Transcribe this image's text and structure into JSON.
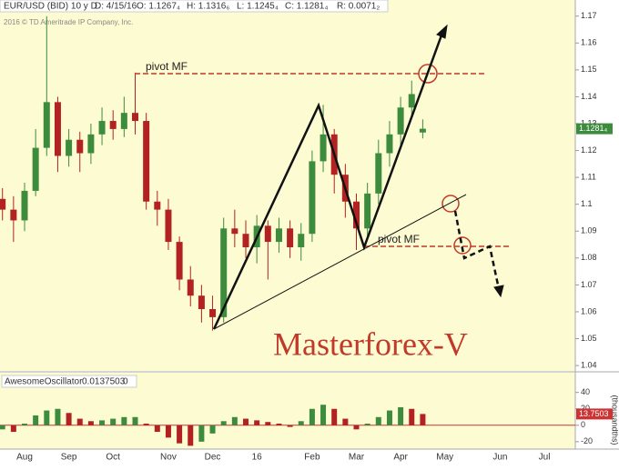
{
  "header": {
    "symbol": "EUR/USD (BID) 10 y D",
    "date": "D: 4/15/16",
    "open": "O: 1.1267₄",
    "high": "H: 1.1316₆",
    "low": "L: 1.1245₄",
    "close": "C: 1.1281₄",
    "range": "R: 0.0071₂",
    "copyright": "2016 © TD Ameritrade IP Company, Inc.",
    "indicator_name": "AwesomeOscillator",
    "indicator_value": "0.0137503",
    "indicator_param": "0",
    "indicator_unit": "(thousandths)"
  },
  "annotations": {
    "pivot_top": "pivot MF",
    "pivot_bottom": "pivot MF",
    "brand": "Masterforex-V"
  },
  "chart_data": [
    {
      "type": "candlestick",
      "up_color": "#3d8b3d",
      "down_color": "#b22222",
      "categories": [
        null,
        null,
        "Aug",
        null,
        null,
        null,
        "Sep",
        null,
        null,
        null,
        "Oct",
        null,
        null,
        null,
        null,
        "Nov",
        null,
        null,
        null,
        "Dec",
        null,
        null,
        null,
        "16",
        null,
        null,
        null,
        null,
        "Feb",
        null,
        null,
        null,
        "Mar",
        null,
        null,
        null,
        "Apr",
        null,
        null,
        null,
        "May",
        null,
        null,
        null,
        null,
        "Jun",
        null,
        null,
        null,
        "Jul",
        null,
        null
      ],
      "open": [
        1.102,
        1.098,
        1.094,
        1.105,
        1.121,
        1.138,
        1.118,
        1.124,
        1.119,
        1.126,
        1.131,
        1.128,
        1.134,
        1.131,
        1.101,
        1.098,
        1.086,
        1.072,
        1.066,
        1.061,
        1.058,
        1.091,
        1.089,
        1.084,
        1.092,
        1.086,
        1.091,
        1.084,
        1.089,
        1.116,
        1.126,
        1.111,
        1.101,
        1.091,
        1.104,
        1.119,
        1.126,
        1.136,
        1.1267,
        null,
        null,
        null,
        null,
        null,
        null,
        null,
        null,
        null,
        null,
        null,
        null,
        null
      ],
      "high": [
        1.106,
        1.103,
        1.108,
        1.128,
        1.17,
        1.14,
        1.128,
        1.127,
        1.13,
        1.136,
        1.135,
        1.14,
        1.149,
        1.134,
        1.105,
        1.102,
        1.088,
        1.077,
        1.07,
        1.066,
        1.095,
        1.098,
        1.094,
        1.096,
        1.094,
        1.095,
        1.094,
        1.093,
        1.12,
        1.137,
        1.128,
        1.115,
        1.104,
        1.108,
        1.124,
        1.131,
        1.14,
        1.146,
        1.1316,
        null,
        null,
        null,
        null,
        null,
        null,
        null,
        null,
        null,
        null,
        null,
        null,
        null
      ],
      "low": [
        1.094,
        1.086,
        1.09,
        1.103,
        1.118,
        1.112,
        1.114,
        1.112,
        1.115,
        1.122,
        1.124,
        1.125,
        1.126,
        1.098,
        1.092,
        1.083,
        1.068,
        1.062,
        1.056,
        1.053,
        1.056,
        1.084,
        1.08,
        1.078,
        1.072,
        1.082,
        1.08,
        1.079,
        1.086,
        1.112,
        1.104,
        1.095,
        1.083,
        1.088,
        1.1,
        1.114,
        1.122,
        1.132,
        1.1245,
        null,
        null,
        null,
        null,
        null,
        null,
        null,
        null,
        null,
        null,
        null,
        null,
        null
      ],
      "close": [
        1.098,
        1.094,
        1.105,
        1.121,
        1.138,
        1.118,
        1.124,
        1.119,
        1.126,
        1.131,
        1.128,
        1.134,
        1.131,
        1.101,
        1.098,
        1.086,
        1.072,
        1.066,
        1.061,
        1.058,
        1.091,
        1.089,
        1.084,
        1.092,
        1.086,
        1.091,
        1.084,
        1.089,
        1.116,
        1.126,
        1.111,
        1.101,
        1.091,
        1.104,
        1.119,
        1.126,
        1.136,
        1.141,
        1.1281,
        null,
        null,
        null,
        null,
        null,
        null,
        null,
        null,
        null,
        null,
        null,
        null,
        null
      ],
      "ylim": [
        1.038,
        1.176
      ],
      "yticks": [
        1.04,
        1.05,
        1.06,
        1.07,
        1.08,
        1.09,
        1.1,
        1.11,
        1.12,
        1.13,
        1.14,
        1.15,
        1.16,
        1.17
      ],
      "grid": false,
      "last_price": {
        "value": 1.1281,
        "label": "1.1281₄"
      },
      "last_color": "#3d8b3d"
    },
    {
      "type": "bar",
      "up_color": "#3d8b3d",
      "down_color": "#b22222",
      "zero_color": "#cc3333",
      "values": [
        -5,
        -8,
        2,
        12,
        18,
        20,
        15,
        8,
        5,
        6,
        8,
        10,
        10,
        2,
        -8,
        -15,
        -22,
        -25,
        -20,
        -10,
        5,
        10,
        8,
        6,
        4,
        2,
        -2,
        5,
        20,
        25,
        20,
        8,
        -5,
        2,
        10,
        18,
        22,
        20,
        13.7503,
        null,
        null,
        null,
        null,
        null,
        null,
        null,
        null,
        null,
        null,
        null,
        null,
        null
      ],
      "ylim": [
        -29,
        64
      ],
      "yticks": [
        -20,
        0,
        20,
        40
      ],
      "last_value": 13.7503,
      "last_color": "#cc3333"
    }
  ]
}
